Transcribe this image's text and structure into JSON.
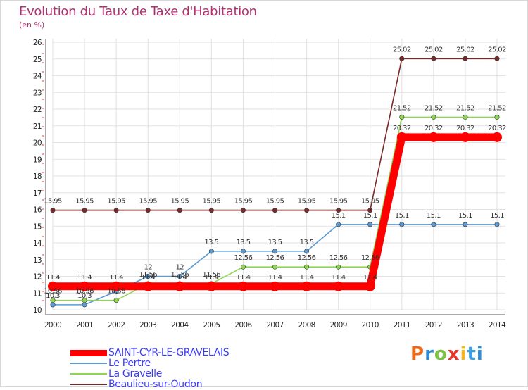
{
  "title": "Evolution du Taux de Taxe d'Habitation",
  "subtitle": "(en %)",
  "logo_text": "Proxiti",
  "logo_colors": [
    "#e86a1a",
    "#2f8fd6",
    "#7bc142",
    "#e8352c",
    "#f2b81c",
    "#3aa0e0",
    "#2f8fd6"
  ],
  "chart_data": {
    "type": "line",
    "title": "Evolution du Taux de Taxe d'Habitation",
    "ylabel": "(en %)",
    "xlabel": "",
    "x": [
      "2000",
      "2001",
      "2002",
      "2003",
      "2004",
      "2005",
      "2006",
      "2007",
      "2008",
      "2009",
      "2010",
      "2011",
      "2012",
      "2013",
      "2014"
    ],
    "ylim": [
      10,
      26
    ],
    "yticks": [
      "10",
      "11",
      "12",
      "13",
      "14",
      "15",
      "16",
      "17",
      "18",
      "19",
      "20",
      "21",
      "22",
      "23",
      "24",
      "25",
      "26"
    ],
    "grid": true,
    "legend_position": "bottom-left",
    "series": [
      {
        "name": "SAINT-CYR-LE-GRAVELAIS",
        "color": "#ff0000",
        "emphasis": true,
        "values": [
          11.4,
          11.4,
          11.4,
          11.4,
          11.4,
          11.4,
          11.4,
          11.4,
          11.4,
          11.4,
          11.4,
          20.32,
          20.32,
          20.32,
          20.32
        ],
        "labels": [
          "11.4",
          "11.4",
          "11.4",
          "11.4",
          "11.4",
          "11.4",
          "11.4",
          "11.4",
          "11.4",
          "11.4",
          "11.4",
          "20.32",
          "20.32",
          "20.32",
          "20.32"
        ]
      },
      {
        "name": "Le Pertre",
        "color": "#5a9bd5",
        "values": [
          10.3,
          10.3,
          11.1,
          12,
          12,
          13.5,
          13.5,
          13.5,
          13.5,
          15.1,
          15.1,
          15.1,
          15.1,
          15.1,
          15.1
        ],
        "labels": [
          "10.3",
          "10.3",
          "",
          "12",
          "12",
          "13.5",
          "13.5",
          "13.5",
          "13.5",
          "15.1",
          "15.1",
          "15.1",
          "15.1",
          "15.1",
          "15.1"
        ]
      },
      {
        "name": "La Gravelle",
        "color": "#8ed652",
        "values": [
          10.56,
          10.56,
          10.56,
          11.56,
          11.56,
          11.56,
          12.56,
          12.56,
          12.56,
          12.56,
          12.56,
          21.52,
          21.52,
          21.52,
          21.52
        ],
        "labels": [
          "10.56",
          "10.56",
          "10.56",
          "11.56",
          "11.56",
          "11.56",
          "12.56",
          "12.56",
          "12.56",
          "12.56",
          "12.56",
          "21.52",
          "21.52",
          "21.52",
          "21.52"
        ]
      },
      {
        "name": "Beaulieu-sur-Oudon",
        "color": "#7a2a2a",
        "values": [
          15.95,
          15.95,
          15.95,
          15.95,
          15.95,
          15.95,
          15.95,
          15.95,
          15.95,
          15.95,
          15.95,
          25.02,
          25.02,
          25.02,
          25.02
        ],
        "labels": [
          "15.95",
          "15.95",
          "15.95",
          "15.95",
          "15.95",
          "15.95",
          "15.95",
          "15.95",
          "15.95",
          "15.95",
          "15.95",
          "25.02",
          "25.02",
          "25.02",
          "25.02"
        ]
      }
    ]
  }
}
